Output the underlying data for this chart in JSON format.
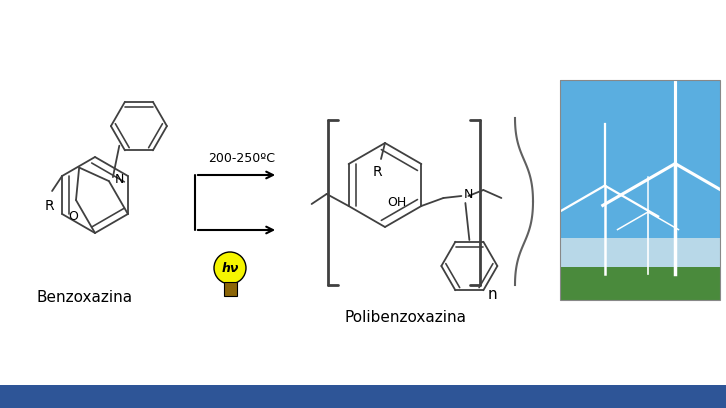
{
  "background_color": "#ffffff",
  "bottom_bar_color": "#2e5597",
  "text_benzoxazina": "Benzoxazina",
  "text_polibenzoxazina": "Polibenzoxazina",
  "text_temp": "200-250ºC",
  "text_hv": "hν",
  "text_OH": "OH",
  "text_N": "N",
  "text_O": "O",
  "text_R": "R",
  "text_n": "n",
  "line_color": "#000000",
  "mol_line_color": "#404040",
  "font_size_label": 11,
  "font_size_atom": 9,
  "lw": 1.3
}
